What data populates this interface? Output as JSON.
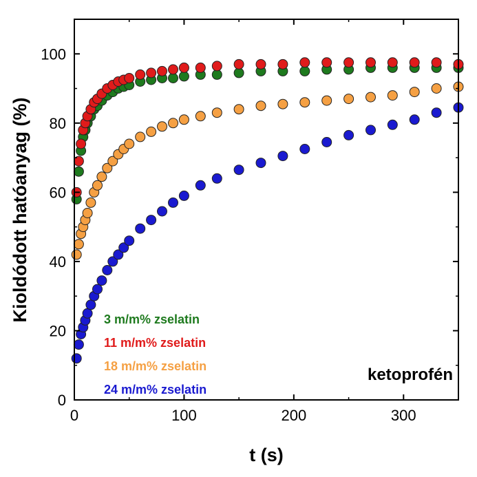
{
  "chart_data": {
    "type": "scatter",
    "xlabel": "t (s)",
    "ylabel": "Kioldódott hatóanyag (%)",
    "xlim": [
      0,
      350
    ],
    "ylim": [
      0,
      110
    ],
    "xticks": [
      0,
      100,
      200,
      300
    ],
    "yticks": [
      0,
      20,
      40,
      60,
      80,
      100
    ],
    "annotation": "ketoprofén",
    "legend_position": "bottom-left",
    "series": [
      {
        "name": "3 m/m% zselatin",
        "color": "#1e7a1e",
        "x": [
          2,
          4,
          6,
          8,
          10,
          12,
          15,
          18,
          21,
          25,
          30,
          35,
          40,
          45,
          50,
          60,
          70,
          80,
          90,
          100,
          115,
          130,
          150,
          170,
          190,
          210,
          230,
          250,
          270,
          290,
          310,
          330,
          350
        ],
        "y": [
          58,
          66,
          72,
          76,
          78,
          80,
          82,
          84,
          85,
          86.5,
          88,
          89,
          90,
          90.5,
          91,
          92,
          92.5,
          93,
          93,
          93.5,
          94,
          94,
          94.5,
          95,
          95,
          95,
          95.5,
          95.5,
          96,
          96,
          96,
          96,
          96
        ]
      },
      {
        "name": "11 m/m% zselatin",
        "color": "#e01b1b",
        "x": [
          2,
          4,
          6,
          8,
          10,
          12,
          15,
          18,
          21,
          25,
          30,
          35,
          40,
          45,
          50,
          60,
          70,
          80,
          90,
          100,
          115,
          130,
          150,
          170,
          190,
          210,
          230,
          250,
          270,
          290,
          310,
          330,
          350
        ],
        "y": [
          60,
          69,
          74,
          78,
          80,
          82,
          84,
          86,
          87,
          88.5,
          90,
          91,
          92,
          92.5,
          93,
          94,
          94.5,
          95,
          95.5,
          96,
          96,
          96.5,
          97,
          97,
          97,
          97.5,
          97.5,
          97.5,
          97.5,
          97.5,
          97.5,
          97.5,
          97
        ]
      },
      {
        "name": "18 m/m% zselatin",
        "color": "#f5a043",
        "x": [
          2,
          4,
          6,
          8,
          10,
          12,
          15,
          18,
          21,
          25,
          30,
          35,
          40,
          45,
          50,
          60,
          70,
          80,
          90,
          100,
          115,
          130,
          150,
          170,
          190,
          210,
          230,
          250,
          270,
          290,
          310,
          330,
          350
        ],
        "y": [
          42,
          45,
          48,
          50,
          52,
          54,
          57,
          60,
          62,
          64.5,
          67,
          69,
          71,
          72.5,
          74,
          76,
          77.5,
          79,
          80,
          81,
          82,
          83,
          84,
          85,
          85.5,
          86,
          86.5,
          87,
          87.5,
          88,
          89,
          90,
          90.5
        ]
      },
      {
        "name": "24 m/m% zselatin",
        "color": "#1a1ad0",
        "x": [
          2,
          4,
          6,
          8,
          10,
          12,
          15,
          18,
          21,
          25,
          30,
          35,
          40,
          45,
          50,
          60,
          70,
          80,
          90,
          100,
          115,
          130,
          150,
          170,
          190,
          210,
          230,
          250,
          270,
          290,
          310,
          330,
          350
        ],
        "y": [
          12,
          16,
          19,
          21,
          23,
          25,
          27.5,
          30,
          32,
          34.5,
          37.5,
          40,
          42,
          44,
          46,
          49.5,
          52,
          54.5,
          57,
          59,
          62,
          64,
          66.5,
          68.5,
          70.5,
          72.5,
          74.5,
          76.5,
          78,
          79.5,
          81,
          83,
          84.5
        ]
      }
    ]
  }
}
